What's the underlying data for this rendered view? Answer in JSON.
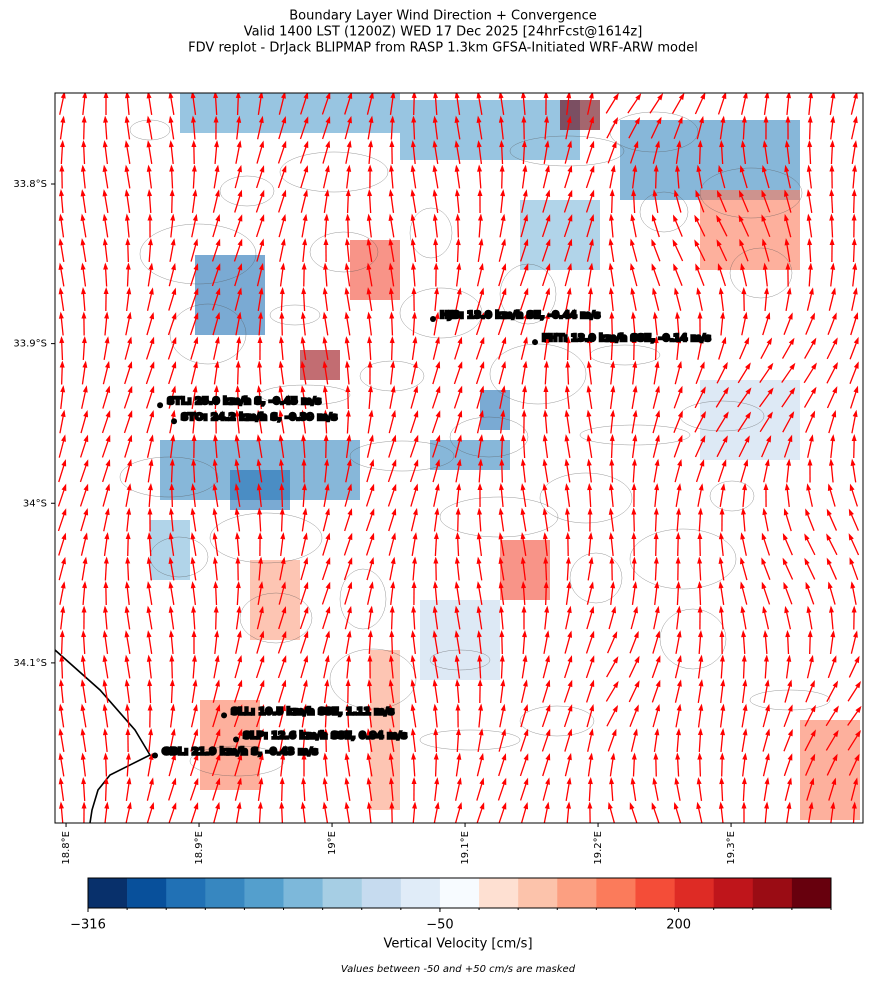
{
  "chart_data": {
    "type": "map",
    "title": [
      "Boundary Layer Wind Direction + Convergence",
      "Valid 1400 LST (1200Z) WED 17 Dec 2025 [24hrFcst@1614z]",
      "FDV replot - DrJack BLIPMAP from RASP 1.3km GFSA-Initiated WRF-ARW model"
    ],
    "xlim": [
      18.7917,
      19.3992
    ],
    "ylim": [
      -34.2003,
      -33.743
    ],
    "xticks": [
      {
        "value": 18.8,
        "label": "18.8°E"
      },
      {
        "value": 18.9,
        "label": "18.9°E"
      },
      {
        "value": 19.0,
        "label": "19°E"
      },
      {
        "value": 19.1,
        "label": "19.1°E"
      },
      {
        "value": 19.2,
        "label": "19.2°E"
      },
      {
        "value": 19.3,
        "label": "19.3°E"
      }
    ],
    "yticks": [
      {
        "value": -33.8,
        "label": "33.8°S"
      },
      {
        "value": -33.9,
        "label": "33.9°S"
      },
      {
        "value": -34.0,
        "label": "34°S"
      },
      {
        "value": -34.1,
        "label": "34.1°S"
      }
    ],
    "stations": [
      {
        "label": "HJB: 13.0 km/h SE, -0.44 m/s",
        "lon": 19.0759,
        "lat": -33.8846
      },
      {
        "label": "FHT: 13.0 km/h SSE, -0.14 m/s",
        "lon": 19.1526,
        "lat": -33.8991
      },
      {
        "label": "STL: 25.0 km/h S, -0.45 m/s",
        "lon": 18.8707,
        "lat": -33.9386
      },
      {
        "label": "STO: 24.2 km/h S, -0.39 m/s",
        "lon": 18.8812,
        "lat": -33.9486
      },
      {
        "label": "SLL: 10.5 km/h SSE, 1.11 m/s",
        "lon": 18.9188,
        "lat": -34.1329
      },
      {
        "label": "SLP: 12.6 km/h SSE, 0.94 m/s",
        "lon": 18.9278,
        "lat": -34.148
      },
      {
        "label": "GBL: 21.9 km/h S, -0.43 m/s",
        "lon": 18.8669,
        "lat": -34.158
      }
    ],
    "arrow_color": "#ff0000",
    "colorbar": {
      "label": "Vertical Velocity [cm/s]",
      "levels": [
        -316,
        -286,
        -257,
        -227,
        -198,
        -168,
        -139,
        -109,
        -80,
        -50,
        50,
        79,
        109,
        138,
        168,
        197,
        226,
        256,
        285,
        315
      ],
      "colors": [
        "#08306b",
        "#08509b",
        "#2171b5",
        "#3787c0",
        "#549fcd",
        "#7db8da",
        "#a6cee4",
        "#c6dbef",
        "#e0ecf8",
        "#f7fbff",
        "#fee0d2",
        "#fcc3ab",
        "#fc9f81",
        "#fb7b5b",
        "#f44d38",
        "#de2b25",
        "#bf151b",
        "#9a0c14",
        "#67000d"
      ],
      "ticks": [
        {
          "value": -316,
          "label": "−316"
        },
        {
          "value": -50,
          "label": "−50"
        },
        {
          "value": 200,
          "label": "200"
        }
      ]
    },
    "footnote": "Values between -50 and +50 cm/s are masked"
  }
}
